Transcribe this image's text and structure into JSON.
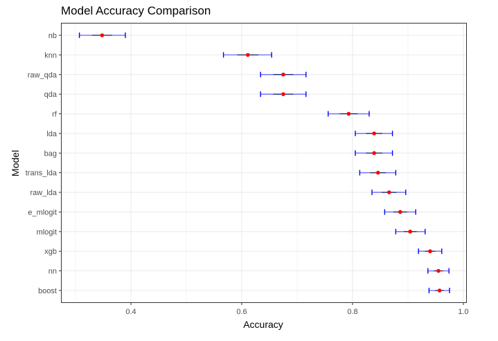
{
  "chart_data": {
    "type": "scatter",
    "title": "Model Accuracy Comparison",
    "xlabel": "Accuracy",
    "ylabel": "Model",
    "xlim": [
      0.275,
      1.005
    ],
    "xticks": [
      0.4,
      0.6,
      0.8,
      1.0
    ],
    "xtick_labels": [
      "0.4",
      "0.6",
      "0.8",
      "1.0"
    ],
    "grid": true,
    "colors": {
      "point": "#ff0000",
      "interval": "#0000ff",
      "interval_pale": "#7b7bff",
      "grid": "#ebebeb",
      "border": "#333333"
    },
    "points": [
      {
        "model": "nb",
        "accuracy": 0.348,
        "low": 0.307,
        "high": 0.39
      },
      {
        "model": "knn",
        "accuracy": 0.611,
        "low": 0.567,
        "high": 0.654
      },
      {
        "model": "raw_qda",
        "accuracy": 0.675,
        "low": 0.634,
        "high": 0.716
      },
      {
        "model": "qda",
        "accuracy": 0.675,
        "low": 0.634,
        "high": 0.716
      },
      {
        "model": "rf",
        "accuracy": 0.793,
        "low": 0.756,
        "high": 0.83
      },
      {
        "model": "lda",
        "accuracy": 0.839,
        "low": 0.805,
        "high": 0.872
      },
      {
        "model": "bag",
        "accuracy": 0.839,
        "low": 0.805,
        "high": 0.872
      },
      {
        "model": "trans_lda",
        "accuracy": 0.846,
        "low": 0.813,
        "high": 0.878
      },
      {
        "model": "raw_lda",
        "accuracy": 0.866,
        "low": 0.835,
        "high": 0.896
      },
      {
        "model": "e_mlogit",
        "accuracy": 0.886,
        "low": 0.858,
        "high": 0.914
      },
      {
        "model": "mlogit",
        "accuracy": 0.904,
        "low": 0.878,
        "high": 0.931
      },
      {
        "model": "xgb",
        "accuracy": 0.94,
        "low": 0.919,
        "high": 0.961
      },
      {
        "model": "nn",
        "accuracy": 0.955,
        "low": 0.936,
        "high": 0.974
      },
      {
        "model": "boost",
        "accuracy": 0.957,
        "low": 0.938,
        "high": 0.975
      }
    ]
  }
}
